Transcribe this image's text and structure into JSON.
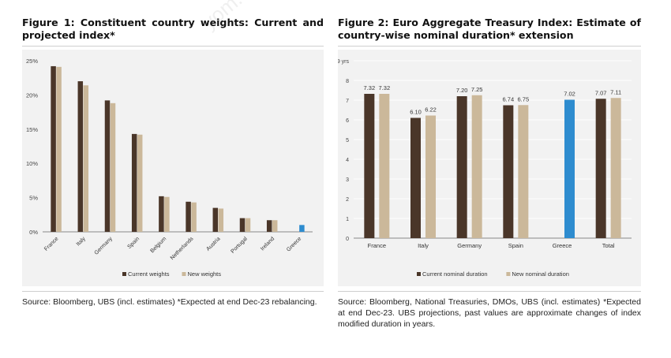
{
  "watermark": "yom.c",
  "colors": {
    "current": "#4a3629",
    "new": "#cbb89a",
    "highlight": "#2e8ccf",
    "axis": "#888888"
  },
  "figure1": {
    "title_line1": "Figure 1: Constituent country weights: Current and",
    "title_line2": "projected index*",
    "source": "Source: Bloomberg, UBS (incl. estimates) *Expected at end Dec-23 rebalancing.",
    "chart_data": {
      "type": "bar",
      "categories": [
        "France",
        "Italy",
        "Germany",
        "Spain",
        "Belgium",
        "Netherlands",
        "Austria",
        "Portugal",
        "Ireland",
        "Greece"
      ],
      "series": [
        {
          "name": "Current weights",
          "values": [
            24.2,
            22.0,
            19.2,
            14.3,
            5.2,
            4.4,
            3.5,
            2.0,
            1.7,
            null
          ]
        },
        {
          "name": "New weights",
          "values": [
            24.1,
            21.4,
            18.8,
            14.2,
            5.1,
            4.3,
            3.4,
            2.0,
            1.7,
            1.0
          ]
        }
      ],
      "highlight_category": "Greece",
      "yticks": [
        "0%",
        "5%",
        "10%",
        "15%",
        "20%",
        "25%"
      ],
      "ylim": [
        0,
        25
      ],
      "legend": [
        "Current weights",
        "New weights"
      ],
      "legend_position": "bottom"
    }
  },
  "figure2": {
    "title_line1": "Figure 2: Euro Aggregate Treasury Index: Estimate of",
    "title_line2": "country-wise nominal duration* extension",
    "source_line1": "Source: Bloomberg, National Treasuries, DMOs, UBS (incl. estimates) *Expected at",
    "source_line2": "end Dec-23. UBS projections, past values are approximate changes of index",
    "source_line3": "modified duration in years.",
    "chart_data": {
      "type": "bar",
      "categories": [
        "France",
        "Italy",
        "Germany",
        "Spain",
        "Greece",
        "Total"
      ],
      "series": [
        {
          "name": "Current nominal duration",
          "values": [
            7.32,
            6.1,
            7.2,
            6.74,
            null,
            7.07
          ]
        },
        {
          "name": "New nominal duration",
          "values": [
            7.32,
            6.22,
            7.25,
            6.75,
            7.02,
            7.11
          ]
        }
      ],
      "data_labels": [
        [
          "7.32",
          "6.10",
          "7.20",
          "6.74",
          "",
          "7.07"
        ],
        [
          "7.32",
          "6.22",
          "7.25",
          "6.75",
          "7.02",
          "7.11"
        ]
      ],
      "highlight_category": "Greece",
      "yticks": [
        "0",
        "1",
        "2",
        "3",
        "4",
        "5",
        "6",
        "7",
        "8",
        "9 yrs"
      ],
      "ylim": [
        0,
        9
      ],
      "legend": [
        "Current nominal duration",
        "New nominal duration"
      ],
      "legend_position": "bottom"
    }
  }
}
